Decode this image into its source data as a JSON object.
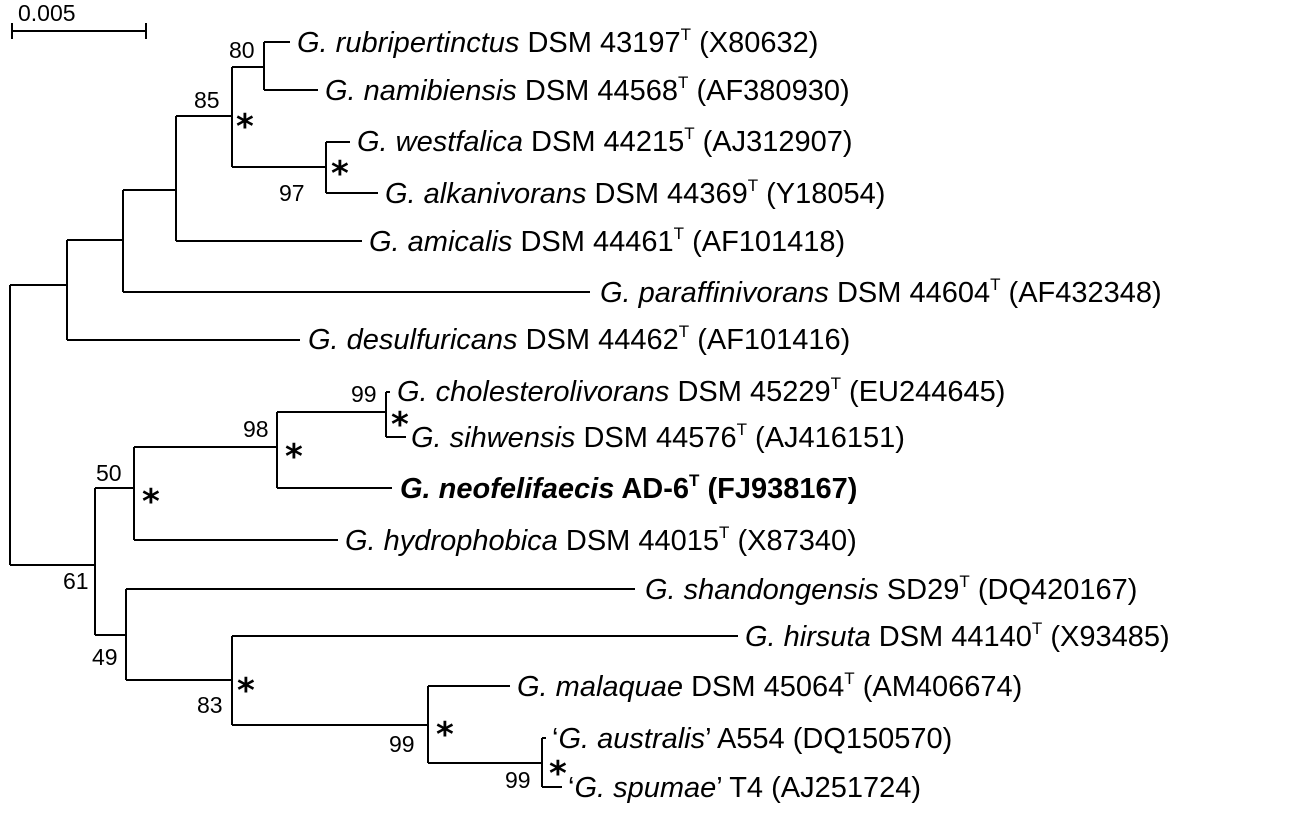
{
  "scale_bar": {
    "label": "0.005"
  },
  "taxa": [
    {
      "quote_open": "",
      "genus": "G. rubripertinctus",
      "quote_close": "",
      "strain": " DSM 43197",
      "type": true,
      "accession": " (X80632)",
      "bold": false
    },
    {
      "quote_open": "",
      "genus": "G. namibiensis",
      "quote_close": "",
      "strain": " DSM 44568",
      "type": true,
      "accession": " (AF380930)",
      "bold": false
    },
    {
      "quote_open": "",
      "genus": "G. westfalica",
      "quote_close": "",
      "strain": " DSM 44215",
      "type": true,
      "accession": " (AJ312907)",
      "bold": false
    },
    {
      "quote_open": "",
      "genus": "G. alkanivorans",
      "quote_close": "",
      "strain": " DSM 44369",
      "type": true,
      "accession": " (Y18054)",
      "bold": false
    },
    {
      "quote_open": "",
      "genus": "G. amicalis",
      "quote_close": "",
      "strain": " DSM 44461",
      "type": true,
      "accession": " (AF101418)",
      "bold": false
    },
    {
      "quote_open": "",
      "genus": "G. paraffinivorans",
      "quote_close": "",
      "strain": " DSM 44604",
      "type": true,
      "accession": " (AF432348)",
      "bold": false
    },
    {
      "quote_open": "",
      "genus": "G. desulfuricans",
      "quote_close": "",
      "strain": " DSM 44462",
      "type": true,
      "accession": " (AF101416)",
      "bold": false
    },
    {
      "quote_open": "",
      "genus": "G. cholesterolivorans",
      "quote_close": "",
      "strain": " DSM 45229",
      "type": true,
      "accession": " (EU244645)",
      "bold": false
    },
    {
      "quote_open": "",
      "genus": "G. sihwensis",
      "quote_close": "",
      "strain": " DSM 44576",
      "type": true,
      "accession": " (AJ416151)",
      "bold": false
    },
    {
      "quote_open": "",
      "genus": "G. neofelifaecis",
      "quote_close": "",
      "strain": " AD-6",
      "type": true,
      "accession": " (FJ938167)",
      "bold": true
    },
    {
      "quote_open": "",
      "genus": "G. hydrophobica",
      "quote_close": "",
      "strain": " DSM 44015",
      "type": true,
      "accession": " (X87340)",
      "bold": false
    },
    {
      "quote_open": "",
      "genus": "G. shandongensis",
      "quote_close": "",
      "strain": " SD29",
      "type": true,
      "accession": " (DQ420167)",
      "bold": false
    },
    {
      "quote_open": "",
      "genus": "G. hirsuta",
      "quote_close": "",
      "strain": " DSM 44140",
      "type": true,
      "accession": " (X93485)",
      "bold": false
    },
    {
      "quote_open": "",
      "genus": "G. malaquae",
      "quote_close": "",
      "strain": " DSM 45064",
      "type": true,
      "accession": " (AM406674)",
      "bold": false
    },
    {
      "quote_open": "‘",
      "genus": "G. australis",
      "quote_close": "’",
      "strain": " A554",
      "type": false,
      "accession": " (DQ150570)",
      "bold": false
    },
    {
      "quote_open": "‘",
      "genus": "G. spumae",
      "quote_close": "’",
      "strain": " T4",
      "type": false,
      "accession": " (AJ251724)",
      "bold": false
    }
  ],
  "type_marker": "T",
  "bootstrap": [
    "80",
    "85",
    "97",
    "99",
    "98",
    "50",
    "61",
    "49",
    "83",
    "99",
    "99"
  ],
  "star_symbol": "*"
}
